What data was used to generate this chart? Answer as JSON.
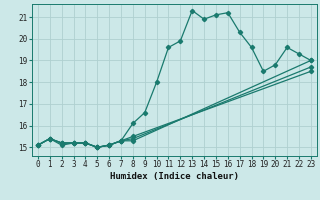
{
  "xlabel": "Humidex (Indice chaleur)",
  "bg_color": "#cce8e8",
  "line_color": "#1a7a6e",
  "grid_color": "#afd0d0",
  "xlim": [
    -0.5,
    23.5
  ],
  "ylim": [
    14.6,
    21.6
  ],
  "xticks": [
    0,
    1,
    2,
    3,
    4,
    5,
    6,
    7,
    8,
    9,
    10,
    11,
    12,
    13,
    14,
    15,
    16,
    17,
    18,
    19,
    20,
    21,
    22,
    23
  ],
  "yticks": [
    15,
    16,
    17,
    18,
    19,
    20,
    21
  ],
  "series_main": [
    [
      0,
      15.1
    ],
    [
      1,
      15.4
    ],
    [
      2,
      15.1
    ],
    [
      3,
      15.2
    ],
    [
      4,
      15.2
    ],
    [
      5,
      15.0
    ],
    [
      6,
      15.1
    ],
    [
      7,
      15.3
    ],
    [
      8,
      16.1
    ],
    [
      9,
      16.6
    ],
    [
      10,
      18.0
    ],
    [
      11,
      19.6
    ],
    [
      12,
      19.9
    ],
    [
      13,
      21.3
    ],
    [
      14,
      20.9
    ],
    [
      15,
      21.1
    ],
    [
      16,
      21.2
    ],
    [
      17,
      20.3
    ],
    [
      18,
      19.6
    ],
    [
      19,
      18.5
    ],
    [
      20,
      18.8
    ],
    [
      21,
      19.6
    ],
    [
      22,
      19.3
    ],
    [
      23,
      19.0
    ]
  ],
  "line2": [
    [
      0,
      15.1
    ],
    [
      1,
      15.4
    ],
    [
      2,
      15.2
    ],
    [
      3,
      15.2
    ],
    [
      4,
      15.2
    ],
    [
      5,
      15.0
    ],
    [
      6,
      15.1
    ],
    [
      7,
      15.3
    ],
    [
      8,
      15.3
    ],
    [
      23,
      19.0
    ]
  ],
  "line3": [
    [
      0,
      15.1
    ],
    [
      1,
      15.4
    ],
    [
      2,
      15.2
    ],
    [
      3,
      15.2
    ],
    [
      4,
      15.2
    ],
    [
      5,
      15.0
    ],
    [
      6,
      15.1
    ],
    [
      7,
      15.3
    ],
    [
      8,
      15.4
    ],
    [
      23,
      18.7
    ]
  ],
  "line4": [
    [
      0,
      15.1
    ],
    [
      1,
      15.4
    ],
    [
      2,
      15.2
    ],
    [
      3,
      15.2
    ],
    [
      4,
      15.2
    ],
    [
      5,
      15.0
    ],
    [
      6,
      15.1
    ],
    [
      7,
      15.3
    ],
    [
      8,
      15.5
    ],
    [
      23,
      18.5
    ]
  ]
}
